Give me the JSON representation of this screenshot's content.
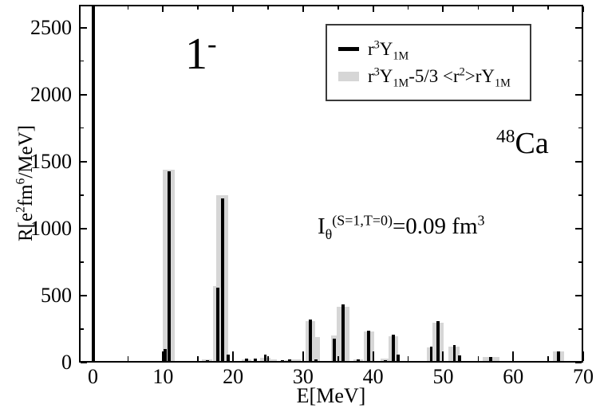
{
  "figure": {
    "background": "#ffffff",
    "axis_color": "#000000"
  },
  "annotations": {
    "spin_parity_rich": [
      [
        "n",
        "1"
      ],
      [
        "sup",
        "-"
      ]
    ],
    "nucleus_rich": [
      [
        "sup",
        "48"
      ],
      [
        "n",
        "Ca"
      ]
    ],
    "integral_rich": [
      [
        "n",
        "I"
      ],
      [
        "sub",
        "θ"
      ],
      [
        "sup",
        "(S=1,T=0)"
      ],
      [
        "n",
        "=0.09 fm"
      ],
      [
        "sup",
        "3"
      ]
    ]
  },
  "legend": {
    "entries": [
      {
        "swatch": "line",
        "color": "#000000",
        "label_rich": [
          [
            "n",
            "r"
          ],
          [
            "sup",
            "3"
          ],
          [
            "n",
            "Y"
          ],
          [
            "sub",
            "1M"
          ]
        ]
      },
      {
        "swatch": "box",
        "color": "#d6d6d6",
        "label_rich": [
          [
            "n",
            "r"
          ],
          [
            "sup",
            "3"
          ],
          [
            "n",
            "Y"
          ],
          [
            "sub",
            "1M"
          ],
          [
            "n",
            "-5/3 <r"
          ],
          [
            "sup",
            "2"
          ],
          [
            "n",
            ">rY"
          ],
          [
            "sub",
            "1M"
          ]
        ]
      }
    ]
  },
  "chart_data": {
    "type": "bar",
    "title": "",
    "xlabel": "E[MeV]",
    "ylabel_rich": [
      [
        "n",
        "R[e"
      ],
      [
        "sup",
        "2"
      ],
      [
        "n",
        "fm"
      ],
      [
        "sup",
        "6"
      ],
      [
        "n",
        "/MeV]"
      ]
    ],
    "xlim": [
      -2,
      70
    ],
    "ylim": [
      0,
      2670
    ],
    "grid": false,
    "legend_position": "upper middle-right inside frame",
    "x_major_ticks": [
      0,
      10,
      20,
      30,
      40,
      50,
      60,
      70
    ],
    "x_minor_ticks": [
      5,
      15,
      25,
      35,
      45,
      55,
      65
    ],
    "y_major_ticks": [
      0,
      500,
      1000,
      1500,
      2000,
      2500
    ],
    "y_minor_ticks": [
      250,
      750,
      1250,
      1750,
      2250
    ],
    "series": [
      {
        "name": "r^3 Y_1M",
        "style": "narrow black bars",
        "color": "#000000",
        "value_key": "black"
      },
      {
        "name": "r^3 Y_1M - 5/3 <r^2> r Y_1M",
        "style": "wide light-gray bars",
        "color": "#d6d6d6",
        "value_key": "gray"
      }
    ],
    "bar_width_mev": {
      "black": 0.45,
      "gray_default": 1.4
    },
    "states": [
      {
        "E": 0.0,
        "black": 2700,
        "gray": 0,
        "clipped": true
      },
      {
        "E": 10.3,
        "black": 90,
        "gray": 0
      },
      {
        "E": 10.85,
        "black": 1415,
        "gray": 1430,
        "gw": 1.7
      },
      {
        "E": 16.3,
        "black": 8,
        "gray": 14
      },
      {
        "E": 17.8,
        "black": 550,
        "gray": 558,
        "gw": 1.3
      },
      {
        "E": 18.5,
        "black": 1215,
        "gray": 1238,
        "gw": 1.7
      },
      {
        "E": 19.3,
        "black": 48,
        "gray": 0
      },
      {
        "E": 21.9,
        "black": 18,
        "gray": 14
      },
      {
        "E": 23.2,
        "black": 20,
        "gray": 0
      },
      {
        "E": 24.6,
        "black": 46,
        "gray": 25
      },
      {
        "E": 25.6,
        "black": 0,
        "gray": 12
      },
      {
        "E": 27.0,
        "black": 8,
        "gray": 0
      },
      {
        "E": 28.1,
        "black": 10,
        "gray": 8
      },
      {
        "E": 29.0,
        "black": 0,
        "gray": 10
      },
      {
        "E": 31.0,
        "black": 307,
        "gray": 298,
        "gw": 1.4
      },
      {
        "E": 31.8,
        "black": 13,
        "gray": 178,
        "gw": 1.2
      },
      {
        "E": 34.5,
        "black": 165,
        "gray": 188,
        "gw": 1.0
      },
      {
        "E": 35.7,
        "black": 420,
        "gray": 406,
        "gw": 1.8
      },
      {
        "E": 37.9,
        "black": 12,
        "gray": 12
      },
      {
        "E": 39.4,
        "black": 228,
        "gray": 218
      },
      {
        "E": 41.8,
        "black": 8,
        "gray": 15
      },
      {
        "E": 42.9,
        "black": 198,
        "gray": 184
      },
      {
        "E": 43.6,
        "black": 50,
        "gray": 0
      },
      {
        "E": 48.3,
        "black": 109,
        "gray": 103,
        "gw": 1.2
      },
      {
        "E": 49.3,
        "black": 298,
        "gray": 288,
        "gw": 1.6
      },
      {
        "E": 51.6,
        "black": 119,
        "gray": 109,
        "gw": 1.6
      },
      {
        "E": 52.3,
        "black": 40,
        "gray": 0
      },
      {
        "E": 56.8,
        "black": 30,
        "gray": 28,
        "gw": 2.4
      },
      {
        "E": 66.5,
        "black": 73,
        "gray": 70,
        "gw": 1.6
      }
    ]
  }
}
